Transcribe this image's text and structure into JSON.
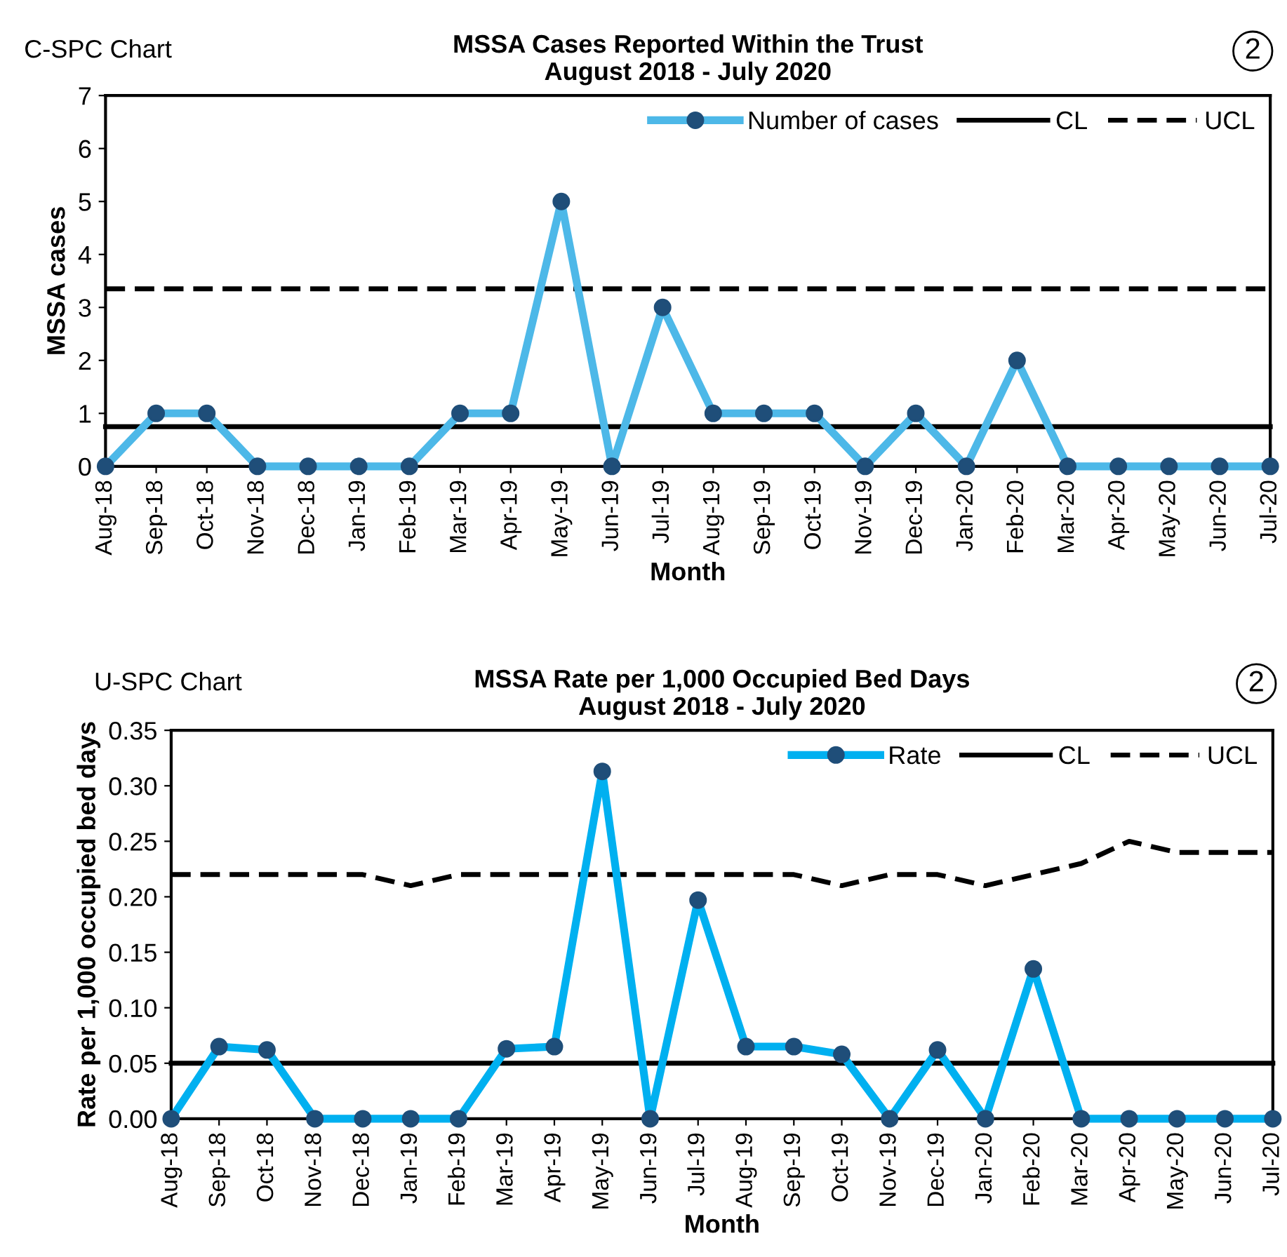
{
  "chart_data": [
    {
      "type": "line",
      "title": "MSSA Cases Reported Within the Trust\nAugust 2018 - July 2020",
      "xlabel": "Month",
      "ylabel": "MSSA cases",
      "annotations": [
        "C-SPC Chart",
        "2"
      ],
      "categories": [
        "Aug-18",
        "Sep-18",
        "Oct-18",
        "Nov-18",
        "Dec-18",
        "Jan-19",
        "Feb-19",
        "Mar-19",
        "Apr-19",
        "May-19",
        "Jun-19",
        "Jul-19",
        "Aug-19",
        "Sep-19",
        "Oct-19",
        "Nov-19",
        "Dec-19",
        "Jan-20",
        "Feb-20",
        "Mar-20",
        "Apr-20",
        "May-20",
        "Jun-20",
        "Jul-20"
      ],
      "series": [
        {
          "name": "Number of cases",
          "color": "#4db8e8",
          "marker": "circle",
          "line_style": "solid",
          "values": [
            0,
            1,
            1,
            0,
            0,
            0,
            0,
            1,
            1,
            5,
            0,
            3,
            1,
            1,
            1,
            0,
            1,
            0,
            2,
            0,
            0,
            0,
            0,
            0
          ]
        },
        {
          "name": "CL",
          "color": "#000000",
          "marker": "none",
          "line_style": "solid",
          "values": [
            0.75,
            0.75,
            0.75,
            0.75,
            0.75,
            0.75,
            0.75,
            0.75,
            0.75,
            0.75,
            0.75,
            0.75,
            0.75,
            0.75,
            0.75,
            0.75,
            0.75,
            0.75,
            0.75,
            0.75,
            0.75,
            0.75,
            0.75,
            0.75
          ]
        },
        {
          "name": "UCL",
          "color": "#000000",
          "marker": "none",
          "line_style": "dashed",
          "values": [
            3.35,
            3.35,
            3.35,
            3.35,
            3.35,
            3.35,
            3.35,
            3.35,
            3.35,
            3.35,
            3.35,
            3.35,
            3.35,
            3.35,
            3.35,
            3.35,
            3.35,
            3.35,
            3.35,
            3.35,
            3.35,
            3.35,
            3.35,
            3.35
          ]
        }
      ],
      "ylim": [
        0,
        7
      ],
      "yticks": [
        0,
        1,
        2,
        3,
        4,
        5,
        6,
        7
      ],
      "grid": false,
      "legend": "top right"
    },
    {
      "type": "line",
      "title": "MSSA Rate per 1,000 Occupied Bed Days\nAugust 2018 - July 2020",
      "xlabel": "Month",
      "ylabel": "Rate per 1,000 occupied bed days",
      "annotations": [
        "U-SPC Chart",
        "2"
      ],
      "categories": [
        "Aug-18",
        "Sep-18",
        "Oct-18",
        "Nov-18",
        "Dec-18",
        "Jan-19",
        "Feb-19",
        "Mar-19",
        "Apr-19",
        "May-19",
        "Jun-19",
        "Jul-19",
        "Aug-19",
        "Sep-19",
        "Oct-19",
        "Nov-19",
        "Dec-19",
        "Jan-20",
        "Feb-20",
        "Mar-20",
        "Apr-20",
        "May-20",
        "Jun-20",
        "Jul-20"
      ],
      "series": [
        {
          "name": "Rate",
          "color": "#00b0f0",
          "marker": "circle",
          "line_style": "solid",
          "values": [
            0,
            0.065,
            0.062,
            0,
            0,
            0,
            0,
            0.063,
            0.065,
            0.313,
            0,
            0.197,
            0.065,
            0.065,
            0.058,
            0,
            0.062,
            0,
            0.135,
            0,
            0,
            0,
            0,
            0
          ]
        },
        {
          "name": "CL",
          "color": "#000000",
          "marker": "none",
          "line_style": "solid",
          "values": [
            0.05,
            0.05,
            0.05,
            0.05,
            0.05,
            0.05,
            0.05,
            0.05,
            0.05,
            0.05,
            0.05,
            0.05,
            0.05,
            0.05,
            0.05,
            0.05,
            0.05,
            0.05,
            0.05,
            0.05,
            0.05,
            0.05,
            0.05,
            0.05
          ]
        },
        {
          "name": "UCL",
          "color": "#000000",
          "marker": "none",
          "line_style": "dashed",
          "values": [
            0.22,
            0.22,
            0.22,
            0.22,
            0.22,
            0.21,
            0.22,
            0.22,
            0.22,
            0.22,
            0.22,
            0.22,
            0.22,
            0.22,
            0.21,
            0.22,
            0.22,
            0.21,
            0.22,
            0.23,
            0.25,
            0.24,
            0.24,
            0.24
          ]
        }
      ],
      "ylim": [
        0,
        0.35
      ],
      "yticks": [
        {
          "value": 0,
          "label": "0.00"
        },
        {
          "value": 0.05,
          "label": "0.05"
        },
        {
          "value": 0.1,
          "label": "0.10"
        },
        {
          "value": 0.15,
          "label": "0.15"
        },
        {
          "value": 0.2,
          "label": "0.20"
        },
        {
          "value": 0.25,
          "label": "0.25"
        },
        {
          "value": 0.3,
          "label": "0.30"
        },
        {
          "value": 0.35,
          "label": "0.35"
        }
      ],
      "grid": false,
      "legend": "top right"
    }
  ]
}
